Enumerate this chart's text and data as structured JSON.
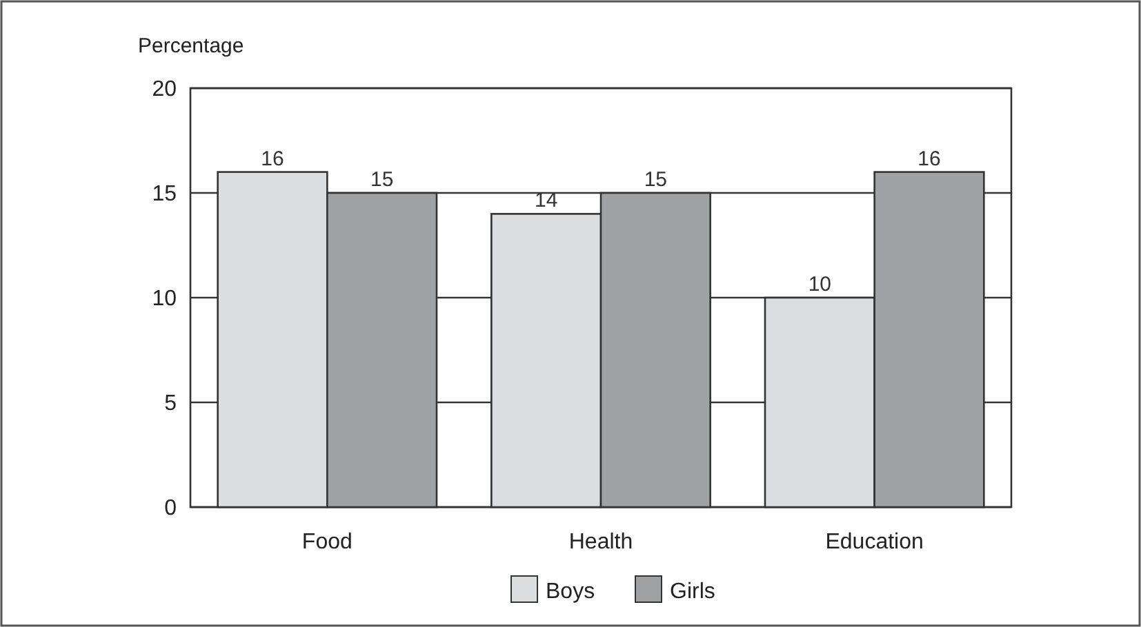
{
  "chart_data": {
    "type": "bar",
    "ylabel": "Percentage",
    "categories": [
      "Food",
      "Health",
      "Education"
    ],
    "series": [
      {
        "name": "Boys",
        "color": "#dcdddf",
        "values": [
          16,
          14,
          10
        ]
      },
      {
        "name": "Girls",
        "color": "#a0a1a3",
        "values": [
          15,
          15,
          16
        ]
      }
    ],
    "ylim": [
      0,
      20
    ],
    "yticks": [
      0,
      5,
      10,
      15,
      20
    ],
    "grid": "y",
    "legend": "bottom",
    "data_labels": true
  }
}
